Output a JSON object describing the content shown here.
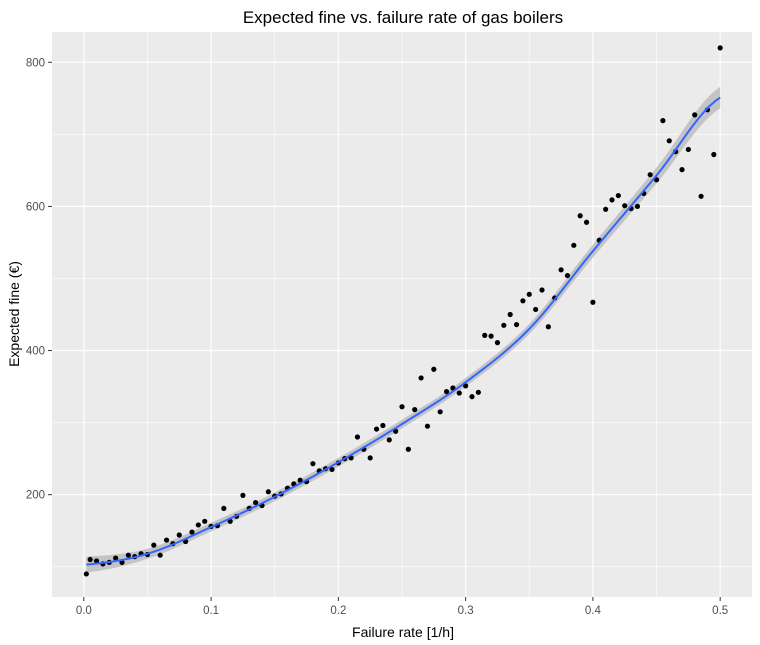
{
  "chart_data": {
    "type": "scatter",
    "title": "Expected fine vs. failure rate of gas boilers",
    "xlabel": "Failure rate [1/h]",
    "ylabel": "Expected fine (€)",
    "xlim": [
      -0.025,
      0.525
    ],
    "ylim": [
      58,
      842
    ],
    "x_ticks": [
      0.0,
      0.1,
      0.2,
      0.3,
      0.4,
      0.5
    ],
    "x_tick_labels": [
      "0.0",
      "0.1",
      "0.2",
      "0.3",
      "0.4",
      "0.5"
    ],
    "y_ticks": [
      200,
      400,
      600,
      800
    ],
    "y_tick_labels": [
      "200",
      "400",
      "600",
      "800"
    ],
    "grid": true,
    "colors": {
      "panel": "#ebebeb",
      "grid": "#ffffff",
      "points": "#000000",
      "fit_line": "#3366ff",
      "confidence_band": "#bdbdbd"
    },
    "points": [
      [
        0.002,
        90
      ],
      [
        0.005,
        110
      ],
      [
        0.01,
        108
      ],
      [
        0.015,
        104
      ],
      [
        0.02,
        106
      ],
      [
        0.025,
        112
      ],
      [
        0.03,
        106
      ],
      [
        0.035,
        116
      ],
      [
        0.04,
        114
      ],
      [
        0.045,
        118
      ],
      [
        0.05,
        117
      ],
      [
        0.055,
        130
      ],
      [
        0.06,
        116
      ],
      [
        0.065,
        137
      ],
      [
        0.07,
        132
      ],
      [
        0.075,
        144
      ],
      [
        0.08,
        135
      ],
      [
        0.085,
        148
      ],
      [
        0.09,
        158
      ],
      [
        0.095,
        163
      ],
      [
        0.1,
        156
      ],
      [
        0.105,
        157
      ],
      [
        0.11,
        181
      ],
      [
        0.115,
        163
      ],
      [
        0.12,
        170
      ],
      [
        0.125,
        199
      ],
      [
        0.13,
        181
      ],
      [
        0.135,
        189
      ],
      [
        0.14,
        185
      ],
      [
        0.145,
        204
      ],
      [
        0.15,
        198
      ],
      [
        0.155,
        201
      ],
      [
        0.16,
        209
      ],
      [
        0.165,
        215
      ],
      [
        0.17,
        220
      ],
      [
        0.175,
        218
      ],
      [
        0.18,
        243
      ],
      [
        0.185,
        233
      ],
      [
        0.19,
        236
      ],
      [
        0.195,
        235
      ],
      [
        0.2,
        244
      ],
      [
        0.205,
        250
      ],
      [
        0.21,
        251
      ],
      [
        0.215,
        280
      ],
      [
        0.22,
        263
      ],
      [
        0.225,
        251
      ],
      [
        0.23,
        291
      ],
      [
        0.235,
        296
      ],
      [
        0.24,
        276
      ],
      [
        0.245,
        288
      ],
      [
        0.25,
        322
      ],
      [
        0.255,
        263
      ],
      [
        0.26,
        318
      ],
      [
        0.265,
        362
      ],
      [
        0.27,
        295
      ],
      [
        0.275,
        374
      ],
      [
        0.28,
        315
      ],
      [
        0.285,
        343
      ],
      [
        0.29,
        348
      ],
      [
        0.295,
        341
      ],
      [
        0.3,
        351
      ],
      [
        0.305,
        336
      ],
      [
        0.31,
        342
      ],
      [
        0.315,
        421
      ],
      [
        0.32,
        420
      ],
      [
        0.325,
        411
      ],
      [
        0.33,
        435
      ],
      [
        0.335,
        450
      ],
      [
        0.34,
        436
      ],
      [
        0.345,
        469
      ],
      [
        0.35,
        478
      ],
      [
        0.355,
        457
      ],
      [
        0.36,
        484
      ],
      [
        0.365,
        433
      ],
      [
        0.37,
        473
      ],
      [
        0.375,
        512
      ],
      [
        0.38,
        504
      ],
      [
        0.385,
        546
      ],
      [
        0.39,
        587
      ],
      [
        0.395,
        578
      ],
      [
        0.4,
        467
      ],
      [
        0.405,
        553
      ],
      [
        0.41,
        596
      ],
      [
        0.415,
        609
      ],
      [
        0.42,
        615
      ],
      [
        0.425,
        601
      ],
      [
        0.43,
        597
      ],
      [
        0.435,
        600
      ],
      [
        0.44,
        618
      ],
      [
        0.445,
        644
      ],
      [
        0.45,
        637
      ],
      [
        0.455,
        719
      ],
      [
        0.46,
        691
      ],
      [
        0.465,
        676
      ],
      [
        0.47,
        651
      ],
      [
        0.475,
        679
      ],
      [
        0.48,
        727
      ],
      [
        0.485,
        614
      ],
      [
        0.49,
        734
      ],
      [
        0.495,
        672
      ],
      [
        0.5,
        820
      ]
    ],
    "fit": {
      "method": "loess",
      "x": [
        0.002,
        0.05,
        0.1,
        0.15,
        0.2,
        0.25,
        0.3,
        0.35,
        0.4,
        0.45,
        0.5
      ],
      "y": [
        103,
        118,
        155,
        197,
        245,
        298,
        356,
        430,
        538,
        643,
        751
      ],
      "se": [
        11,
        7,
        6,
        6,
        6,
        6,
        6,
        7,
        9,
        11,
        15
      ]
    }
  }
}
